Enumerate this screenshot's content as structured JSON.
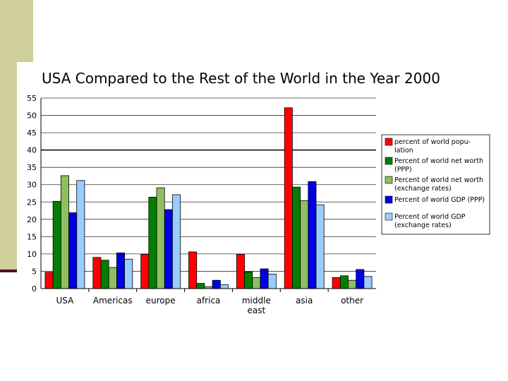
{
  "slide": {
    "accent_color": "#cfcf9b",
    "rule_color": "#4a1020"
  },
  "chart_data": {
    "type": "bar",
    "title": "USA Compared to the Rest of the World in the Year 2000",
    "xlabel": "",
    "ylabel": "",
    "ylim": [
      0,
      55
    ],
    "yticks": [
      0,
      5,
      10,
      15,
      20,
      25,
      30,
      35,
      40,
      45,
      50,
      55
    ],
    "grid": true,
    "legend_position": "right",
    "categories": [
      "USA",
      "Americas",
      "europe",
      "africa",
      "middle east",
      "asia",
      "other"
    ],
    "category_labels": [
      [
        "USA"
      ],
      [
        "Americas"
      ],
      [
        "europe"
      ],
      [
        "africa"
      ],
      [
        "middle",
        "east"
      ],
      [
        "asia"
      ],
      [
        "other"
      ]
    ],
    "series": [
      {
        "name": "percent of world popu-lation",
        "legend_lines": [
          "percent of world popu-",
          "lation"
        ],
        "color": "#ff0000",
        "values": [
          4.7,
          9.0,
          9.9,
          10.6,
          9.9,
          52.2,
          3.2
        ]
      },
      {
        "name": "Percent of world net worth (PPP)",
        "legend_lines": [
          "Percent of world net worth",
          "(PPP)"
        ],
        "color": "#007f00",
        "values": [
          25.2,
          8.2,
          26.4,
          1.5,
          4.8,
          29.3,
          3.7
        ]
      },
      {
        "name": "Percent of world net worth (exchange rates)",
        "legend_lines": [
          "Percent of world net worth",
          "(exchange rates)"
        ],
        "color": "#8fc060",
        "values": [
          32.6,
          6.1,
          29.1,
          0.5,
          3.2,
          25.4,
          2.4
        ]
      },
      {
        "name": "Percent of world GDP (PPP)",
        "legend_lines": [
          "Percent of world GDP (PPP)"
        ],
        "color": "#0000e0",
        "values": [
          21.9,
          10.3,
          22.8,
          2.4,
          5.7,
          30.9,
          5.5
        ]
      },
      {
        "name": "Percent of world GDP (exchange rates)",
        "legend_lines": [
          "Percent of world GDP",
          "(exchange rates)"
        ],
        "color": "#99ccff",
        "values": [
          31.2,
          8.5,
          27.1,
          1.1,
          4.2,
          24.2,
          3.5
        ]
      }
    ]
  }
}
